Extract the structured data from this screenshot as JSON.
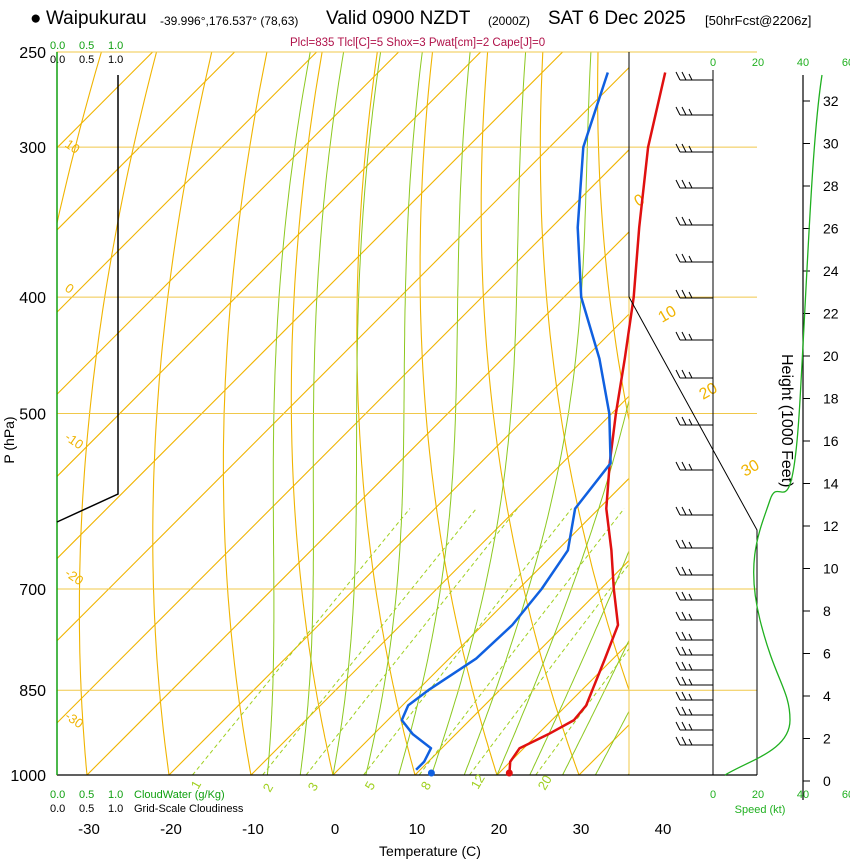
{
  "header": {
    "bullet": "●",
    "station": "Waipukurau",
    "coords": "-39.996°,176.537° (78,63)",
    "valid": "Valid 0900 NZDT",
    "utc": "(2000Z)",
    "date": "SAT 6 Dec 2025",
    "forecast": "[50hrFcst@2206z]"
  },
  "indices_text": "Plcl=835 Tlcl[C]=5 Shox=3 Pwat[cm]=2 Cape[J]=0",
  "colors": {
    "isotherm": "#f0b400",
    "dry_adiabat": "#f0b400",
    "moist_adiabat": "#8cc820",
    "mixing_ratio": "#a0d020",
    "temperature": "#e01010",
    "dewpoint": "#1060e0",
    "cloud": "#10a010",
    "speed_profile": "#20b020",
    "axis": "#000000"
  },
  "chart_data": {
    "type": "line",
    "title": "Skew-T log-P sounding, Waipukurau",
    "xlabel": "Temperature (C)",
    "ylabel": "P (hPa)",
    "y2label": "Height (1000 Feet)",
    "temperature_ticks": [
      -30,
      -20,
      -10,
      0,
      10,
      20,
      30,
      40
    ],
    "pressure_ticks": [
      250,
      300,
      400,
      500,
      700,
      850,
      1000
    ],
    "height_ticks": [
      0,
      2,
      4,
      6,
      8,
      10,
      12,
      14,
      16,
      18,
      20,
      22,
      24,
      26,
      28,
      30,
      32
    ],
    "dry_adiabat_labels": [
      "10",
      "0",
      "-10",
      "-20",
      "-30"
    ],
    "moist_adiabat_labels": [
      "0",
      "10",
      "20",
      "30"
    ],
    "mixing_ratio_labels": [
      "1",
      "2",
      "3",
      "5",
      "8",
      "12",
      "20"
    ],
    "cloud_scale_top": [
      "0.0",
      "0.5",
      "1.0"
    ],
    "cloud_scale_top2": [
      "0.0",
      "0.5",
      "1.0"
    ],
    "cloud_scale_bottom": [
      "0.0",
      "0.5",
      "1.0"
    ],
    "cloud_scale_bottom2": [
      "0.0",
      "0.5",
      "1.0"
    ],
    "cloudwater_label": "CloudWater (g/Kg)",
    "cloudiness_label": "Grid-Scale Cloudiness",
    "speed_scale": [
      "0",
      "20",
      "40",
      "60"
    ],
    "speed_label": "Speed (kt)",
    "temperature_profile": [
      {
        "p": 1000,
        "t": 21.5
      },
      {
        "p": 975,
        "t": 20.0
      },
      {
        "p": 950,
        "t": 19.5
      },
      {
        "p": 925,
        "t": 21.3
      },
      {
        "p": 900,
        "t": 22.7
      },
      {
        "p": 875,
        "t": 22.4
      },
      {
        "p": 850,
        "t": 21.3
      },
      {
        "p": 800,
        "t": 19.0
      },
      {
        "p": 750,
        "t": 16.5
      },
      {
        "p": 700,
        "t": 11.6
      },
      {
        "p": 650,
        "t": 6.6
      },
      {
        "p": 600,
        "t": 0.9
      },
      {
        "p": 550,
        "t": -4.2
      },
      {
        "p": 500,
        "t": -9.5
      },
      {
        "p": 450,
        "t": -15.1
      },
      {
        "p": 400,
        "t": -21.5
      },
      {
        "p": 350,
        "t": -29.3
      },
      {
        "p": 300,
        "t": -38.0
      },
      {
        "p": 260,
        "t": -45.0
      }
    ],
    "dewpoint_profile": [
      {
        "p": 990,
        "t": 9.5
      },
      {
        "p": 975,
        "t": 9.5
      },
      {
        "p": 950,
        "t": 8.7
      },
      {
        "p": 925,
        "t": 4.8
      },
      {
        "p": 900,
        "t": 1.7
      },
      {
        "p": 875,
        "t": 0.7
      },
      {
        "p": 850,
        "t": 1.3
      },
      {
        "p": 800,
        "t": 3.3
      },
      {
        "p": 750,
        "t": 3.6
      },
      {
        "p": 700,
        "t": 2.8
      },
      {
        "p": 650,
        "t": 1.3
      },
      {
        "p": 600,
        "t": -2.9
      },
      {
        "p": 550,
        "t": -4.1
      },
      {
        "p": 500,
        "t": -10.3
      },
      {
        "p": 450,
        "t": -18.2
      },
      {
        "p": 400,
        "t": -27.9
      },
      {
        "p": 350,
        "t": -36.8
      },
      {
        "p": 300,
        "t": -45.9
      },
      {
        "p": 260,
        "t": -52.0
      }
    ],
    "surface_temperature": 21.5,
    "surface_dewpoint": 12.0
  }
}
